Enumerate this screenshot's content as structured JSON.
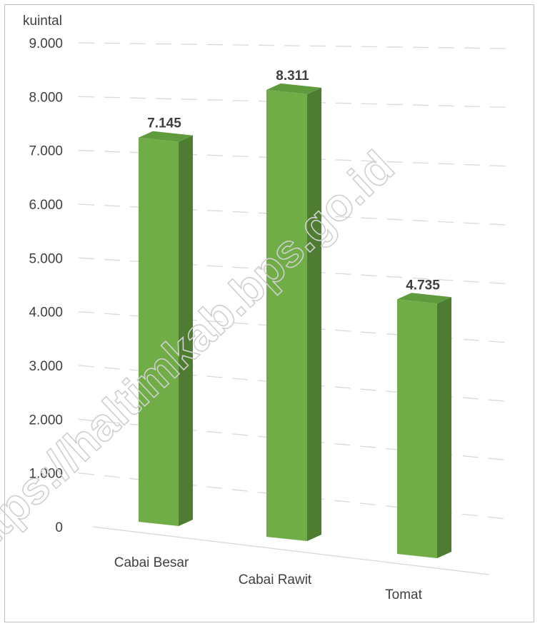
{
  "watermark": "https://haltimkab.bps.go.id",
  "chart_data": {
    "type": "bar",
    "unit_label": "kuintal",
    "categories": [
      "Cabai Besar",
      "Cabai Rawit",
      "Tomat"
    ],
    "values": [
      7145,
      8311,
      4735
    ],
    "value_labels": [
      "7.145",
      "8.311",
      "4.735"
    ],
    "ylim": [
      0,
      9000
    ],
    "y_ticks": [
      0,
      1000,
      2000,
      3000,
      4000,
      5000,
      6000,
      7000,
      8000,
      9000
    ],
    "y_tick_labels": [
      "0",
      "1.000",
      "2.000",
      "3.000",
      "4.000",
      "5.000",
      "6.000",
      "7.000",
      "8.000",
      "9.000"
    ],
    "grid": true,
    "legend": "none",
    "colors": {
      "bar_front": "#70ad47",
      "bar_side": "#4e7d32",
      "bar_top": "#5f9a3c"
    }
  }
}
